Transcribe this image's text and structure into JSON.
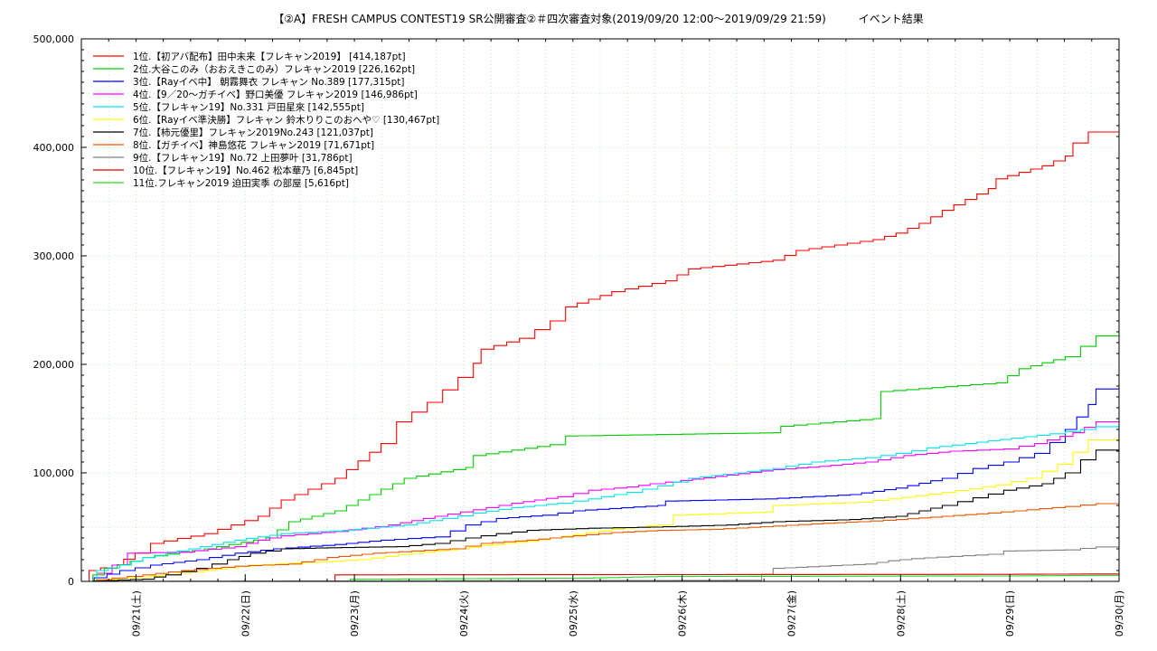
{
  "chart_data": {
    "type": "line",
    "title": "【②A】FRESH CAMPUS CONTEST19 SR公開審査②＃四次審査対象(2019/09/20 12:00〜2019/09/29 21:59)　　　イベント結果",
    "xlabel": "",
    "ylabel": "",
    "ylim": [
      0,
      500000
    ],
    "xlim": [
      "09/20 12:00",
      "09/30 00:00"
    ],
    "grid": true,
    "legend_position": "top-left",
    "y_ticks": [
      "0",
      "100,000",
      "200,000",
      "300,000",
      "400,000",
      "500,000"
    ],
    "x_ticks": [
      "09/21(土)",
      "09/22(日)",
      "09/23(月)",
      "09/24(火)",
      "09/25(水)",
      "09/26(木)",
      "09/27(金)",
      "09/28(土)",
      "09/29(日)",
      "09/30(月)"
    ],
    "series": [
      {
        "name": "1位.【初アバ配布】田中未来【フレキャン2019】 [414,187pt]",
        "color": "#ff0000",
        "points": [
          [
            0,
            0
          ],
          [
            0.1,
            10000
          ],
          [
            0.4,
            15000
          ],
          [
            0.7,
            26000
          ],
          [
            0.9,
            35000
          ],
          [
            1.6,
            44000
          ],
          [
            2.3,
            60000
          ],
          [
            2.6,
            75000
          ],
          [
            3.3,
            95000
          ],
          [
            3.9,
            127000
          ],
          [
            4.1,
            147000
          ],
          [
            4.5,
            165000
          ],
          [
            4.9,
            188000
          ],
          [
            5.1,
            201000
          ],
          [
            5.2,
            214000
          ],
          [
            5.7,
            224000
          ],
          [
            6.1,
            240000
          ],
          [
            6.3,
            253000
          ],
          [
            6.9,
            267000
          ],
          [
            7.6,
            277000
          ],
          [
            7.9,
            288000
          ],
          [
            9.0,
            296000
          ],
          [
            9.3,
            305000
          ],
          [
            10.3,
            315000
          ],
          [
            10.6,
            321000
          ],
          [
            10.9,
            330000
          ],
          [
            11.2,
            342000
          ],
          [
            11.5,
            352000
          ],
          [
            11.8,
            362000
          ],
          [
            11.9,
            371000
          ],
          [
            12.5,
            383000
          ],
          [
            12.8,
            392000
          ],
          [
            12.9,
            404000
          ],
          [
            13.1,
            414187
          ],
          [
            13.5,
            414187
          ]
        ]
      },
      {
        "name": "2位.大谷このみ（おおえきこのみ）フレキャン2019 [226,162pt]",
        "color": "#00cc00",
        "points": [
          [
            0,
            0
          ],
          [
            0.3,
            12000
          ],
          [
            0.8,
            22000
          ],
          [
            1.6,
            30000
          ],
          [
            2.4,
            40000
          ],
          [
            2.7,
            55000
          ],
          [
            3.3,
            65000
          ],
          [
            3.6,
            75000
          ],
          [
            3.9,
            85000
          ],
          [
            4.2,
            95000
          ],
          [
            5.0,
            105000
          ],
          [
            5.1,
            116000
          ],
          [
            6.1,
            126000
          ],
          [
            6.3,
            134000
          ],
          [
            9.0,
            137000
          ],
          [
            9.1,
            143000
          ],
          [
            10.3,
            150000
          ],
          [
            10.4,
            175000
          ],
          [
            11.9,
            183000
          ],
          [
            12.2,
            196000
          ],
          [
            12.8,
            207000
          ],
          [
            13.2,
            226162
          ],
          [
            13.5,
            226162
          ]
        ]
      },
      {
        "name": "3位.【Rayイベ中】 朝霧舞衣 フレキャン No.389 [177,315pt]",
        "color": "#0000ff",
        "points": [
          [
            0,
            0
          ],
          [
            0.5,
            10000
          ],
          [
            0.9,
            15000
          ],
          [
            1.5,
            20000
          ],
          [
            2.0,
            26000
          ],
          [
            2.5,
            30000
          ],
          [
            3.3,
            34000
          ],
          [
            3.9,
            38000
          ],
          [
            4.6,
            41000
          ],
          [
            5.0,
            52000
          ],
          [
            5.4,
            58000
          ],
          [
            6.0,
            61000
          ],
          [
            6.4,
            65000
          ],
          [
            7.5,
            70000
          ],
          [
            7.6,
            74000
          ],
          [
            8.9,
            76000
          ],
          [
            10.0,
            80000
          ],
          [
            10.6,
            86000
          ],
          [
            11.2,
            95000
          ],
          [
            11.6,
            104000
          ],
          [
            12.0,
            110000
          ],
          [
            12.4,
            118000
          ],
          [
            12.6,
            128000
          ],
          [
            12.8,
            140000
          ],
          [
            13.1,
            163000
          ],
          [
            13.2,
            177315
          ],
          [
            13.5,
            177315
          ]
        ]
      },
      {
        "name": "4位.【9／20〜ガチイベ】野口美優 フレキャン2019 [146,986pt]",
        "color": "#ff00ff",
        "points": [
          [
            0,
            0
          ],
          [
            0.4,
            15000
          ],
          [
            0.6,
            26000
          ],
          [
            1.3,
            27000
          ],
          [
            2.0,
            32000
          ],
          [
            2.3,
            38000
          ],
          [
            2.6,
            42000
          ],
          [
            3.3,
            46000
          ],
          [
            4.0,
            52000
          ],
          [
            4.6,
            60000
          ],
          [
            5.1,
            66000
          ],
          [
            5.6,
            72000
          ],
          [
            6.2,
            78000
          ],
          [
            6.6,
            84000
          ],
          [
            7.1,
            87000
          ],
          [
            7.4,
            90000
          ],
          [
            7.8,
            93000
          ],
          [
            8.4,
            98000
          ],
          [
            9.0,
            103000
          ],
          [
            9.6,
            106000
          ],
          [
            10.2,
            110000
          ],
          [
            10.7,
            116000
          ],
          [
            11.3,
            120000
          ],
          [
            12.0,
            122000
          ],
          [
            12.4,
            127000
          ],
          [
            12.9,
            137000
          ],
          [
            13.2,
            146986
          ],
          [
            13.5,
            146986
          ]
        ]
      },
      {
        "name": "5位.【フレキャン19】No.331 戸田星來 [142,555pt]",
        "color": "#00e5ee",
        "points": [
          [
            0,
            0
          ],
          [
            0.2,
            10000
          ],
          [
            0.5,
            15000
          ],
          [
            0.8,
            22000
          ],
          [
            1.4,
            30000
          ],
          [
            2.0,
            38000
          ],
          [
            2.6,
            44000
          ],
          [
            3.4,
            47000
          ],
          [
            4.2,
            52000
          ],
          [
            4.7,
            58000
          ],
          [
            5.1,
            63000
          ],
          [
            5.6,
            68000
          ],
          [
            6.2,
            72000
          ],
          [
            6.6,
            76000
          ],
          [
            7.1,
            82000
          ],
          [
            7.5,
            88000
          ],
          [
            7.9,
            95000
          ],
          [
            8.5,
            100000
          ],
          [
            9.0,
            104000
          ],
          [
            9.5,
            110000
          ],
          [
            10.2,
            114000
          ],
          [
            10.6,
            118000
          ],
          [
            11.0,
            123000
          ],
          [
            11.5,
            127000
          ],
          [
            12.1,
            132000
          ],
          [
            12.6,
            136000
          ],
          [
            13.0,
            140000
          ],
          [
            13.2,
            142555
          ],
          [
            13.5,
            142555
          ]
        ]
      },
      {
        "name": "6位.【Rayイベ準決勝】フレキャン 鈴木りりこのおへや♡ [130,467pt]",
        "color": "#ffff00",
        "points": [
          [
            0,
            0
          ],
          [
            0.9,
            5000
          ],
          [
            1.6,
            10000
          ],
          [
            2.2,
            15000
          ],
          [
            3.1,
            18000
          ],
          [
            3.6,
            20000
          ],
          [
            4.3,
            26000
          ],
          [
            4.9,
            30000
          ],
          [
            5.2,
            33000
          ],
          [
            5.8,
            37000
          ],
          [
            6.4,
            43000
          ],
          [
            6.9,
            48000
          ],
          [
            7.5,
            52000
          ],
          [
            7.7,
            61000
          ],
          [
            8.9,
            64000
          ],
          [
            9.0,
            70000
          ],
          [
            10.1,
            73000
          ],
          [
            10.5,
            76000
          ],
          [
            11.2,
            82000
          ],
          [
            11.9,
            89000
          ],
          [
            12.3,
            95000
          ],
          [
            12.7,
            108000
          ],
          [
            12.9,
            119000
          ],
          [
            13.1,
            130467
          ],
          [
            13.5,
            130467
          ]
        ]
      },
      {
        "name": "7位.【柿元優里】フレキャン2019No.243 [121,037pt]",
        "color": "#000000",
        "points": [
          [
            0,
            0
          ],
          [
            0.8,
            2000
          ],
          [
            1.1,
            6000
          ],
          [
            1.5,
            12000
          ],
          [
            1.9,
            20000
          ],
          [
            2.2,
            26000
          ],
          [
            2.6,
            30000
          ],
          [
            3.2,
            31000
          ],
          [
            4.1,
            32000
          ],
          [
            4.6,
            35000
          ],
          [
            5.0,
            40000
          ],
          [
            5.4,
            44000
          ],
          [
            5.8,
            47000
          ],
          [
            6.6,
            49000
          ],
          [
            7.4,
            50000
          ],
          [
            8.4,
            52000
          ],
          [
            9.0,
            55000
          ],
          [
            10.0,
            57000
          ],
          [
            10.6,
            60000
          ],
          [
            11.2,
            70000
          ],
          [
            11.6,
            77000
          ],
          [
            12.0,
            84000
          ],
          [
            12.5,
            90000
          ],
          [
            12.8,
            100000
          ],
          [
            13.0,
            112000
          ],
          [
            13.2,
            121037
          ],
          [
            13.5,
            121037
          ]
        ]
      },
      {
        "name": "8位.【ガチイベ】神島悠花 フレキャン2019 [71,671pt]",
        "color": "#ee5500",
        "points": [
          [
            0,
            0
          ],
          [
            0.4,
            3000
          ],
          [
            0.8,
            6000
          ],
          [
            1.3,
            10000
          ],
          [
            2.0,
            14000
          ],
          [
            2.7,
            16000
          ],
          [
            3.2,
            22000
          ],
          [
            3.8,
            26000
          ],
          [
            4.3,
            28000
          ],
          [
            4.8,
            30000
          ],
          [
            5.2,
            35000
          ],
          [
            5.8,
            38000
          ],
          [
            6.4,
            42000
          ],
          [
            6.9,
            45000
          ],
          [
            7.5,
            47000
          ],
          [
            8.2,
            48000
          ],
          [
            9.0,
            51000
          ],
          [
            9.5,
            53000
          ],
          [
            10.1,
            55000
          ],
          [
            10.6,
            57000
          ],
          [
            11.2,
            60000
          ],
          [
            11.8,
            63000
          ],
          [
            12.3,
            66000
          ],
          [
            12.8,
            69000
          ],
          [
            13.2,
            71671
          ],
          [
            13.5,
            71671
          ]
        ]
      },
      {
        "name": "9位.【フレキャン19】No.72 上田夢叶 [31,786pt]",
        "color": "#808080",
        "points": [
          [
            0,
            0
          ],
          [
            8.7,
            1000
          ],
          [
            9.0,
            12000
          ],
          [
            9.6,
            14000
          ],
          [
            10.2,
            16000
          ],
          [
            10.5,
            19000
          ],
          [
            10.8,
            21000
          ],
          [
            11.3,
            23000
          ],
          [
            11.8,
            25000
          ],
          [
            12.0,
            28000
          ],
          [
            12.8,
            29000
          ],
          [
            13.2,
            31786
          ],
          [
            13.5,
            31786
          ]
        ]
      },
      {
        "name": "10位.【フレキャン19】No.462 松本華乃 [6,845pt]",
        "color": "#dd0000",
        "points": [
          [
            0,
            0
          ],
          [
            3.25,
            0
          ],
          [
            3.3,
            6000
          ],
          [
            12.0,
            6500
          ],
          [
            13.2,
            6845
          ],
          [
            13.5,
            6845
          ]
        ]
      },
      {
        "name": "11位.フレキャン2019 迫田実季 の部屋 [5,616pt]",
        "color": "#22dd22",
        "points": [
          [
            0,
            0
          ],
          [
            3.4,
            0
          ],
          [
            3.5,
            2000
          ],
          [
            6.5,
            3000
          ],
          [
            7.5,
            4500
          ],
          [
            12.0,
            5000
          ],
          [
            13.2,
            5616
          ],
          [
            13.5,
            5616
          ]
        ]
      }
    ]
  }
}
